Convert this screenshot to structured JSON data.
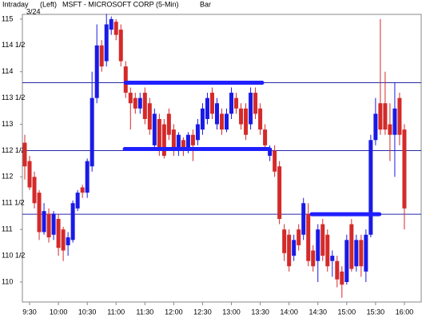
{
  "chart_data": {
    "type": "candlestick",
    "title": "MSFT - MICROSOFT CORP  (5-Min)",
    "mode": "Intraday",
    "side": "(Left)",
    "style": "Bar",
    "date": "3/24",
    "up_color": "#1a1ae6",
    "down_color": "#d42a2a",
    "line_color": "#2828a8",
    "band_color": "#1f1fff",
    "xlim": [
      562.5,
      977.5
    ],
    "ylim": [
      109.62,
      115.09
    ],
    "xticks": [
      {
        "value": 570,
        "label": "9:30"
      },
      {
        "value": 600,
        "label": "10:00"
      },
      {
        "value": 630,
        "label": "10:30"
      },
      {
        "value": 660,
        "label": "11:00"
      },
      {
        "value": 690,
        "label": "11:30"
      },
      {
        "value": 720,
        "label": "12:00"
      },
      {
        "value": 750,
        "label": "12:30"
      },
      {
        "value": 780,
        "label": "13:00"
      },
      {
        "value": 810,
        "label": "13:30"
      },
      {
        "value": 840,
        "label": "14:00"
      },
      {
        "value": 870,
        "label": "14:30"
      },
      {
        "value": 900,
        "label": "15:00"
      },
      {
        "value": 930,
        "label": "15:30"
      },
      {
        "value": 960,
        "label": "16:00"
      }
    ],
    "yticks": [
      110,
      {
        "value": 110.5,
        "label": "110 1/2"
      },
      111,
      {
        "value": 111.5,
        "label": "111 1/2"
      },
      112,
      {
        "value": 112.5,
        "label": "112 1/2"
      },
      113,
      {
        "value": 113.5,
        "label": "113 1/2"
      },
      114,
      {
        "value": 114.5,
        "label": "114 1/2"
      },
      115
    ],
    "x": [
      565,
      570,
      575,
      580,
      585,
      590,
      595,
      600,
      605,
      610,
      615,
      620,
      625,
      630,
      635,
      640,
      645,
      650,
      655,
      660,
      665,
      670,
      675,
      680,
      685,
      690,
      695,
      700,
      705,
      710,
      715,
      720,
      725,
      730,
      735,
      740,
      745,
      750,
      755,
      760,
      765,
      770,
      775,
      780,
      785,
      790,
      795,
      800,
      805,
      810,
      815,
      820,
      825,
      830,
      835,
      840,
      845,
      850,
      855,
      860,
      865,
      870,
      875,
      880,
      885,
      890,
      895,
      900,
      905,
      910,
      915,
      920,
      925,
      930,
      935,
      940,
      945,
      950,
      955,
      960
    ],
    "open": [
      112.65,
      112.3,
      112.0,
      111.7,
      110.95,
      111.3,
      110.9,
      111.2,
      111.0,
      110.7,
      110.8,
      111.4,
      111.8,
      111.7,
      112.2,
      113.5,
      114.5,
      114.2,
      114.8,
      114.95,
      114.8,
      114.1,
      113.6,
      113.5,
      113.3,
      113.6,
      113.4,
      112.6,
      113.1,
      113.0,
      113.2,
      112.9,
      112.5,
      112.7,
      112.5,
      112.8,
      112.7,
      112.9,
      113.1,
      113.6,
      113.0,
      113.2,
      112.9,
      113.2,
      113.5,
      113.3,
      113.3,
      113.0,
      113.6,
      113.3,
      112.9,
      112.4,
      112.5,
      112.2,
      111.0,
      110.9,
      110.5,
      111.0,
      110.9,
      111.3,
      110.6,
      110.4,
      111.1,
      110.9,
      110.4,
      110.4,
      110.2,
      110.0,
      111.1,
      110.3,
      110.8,
      110.2,
      110.9,
      112.7,
      113.4,
      113.4,
      113.0,
      112.8,
      113.5,
      112.9
    ],
    "high": [
      112.8,
      112.4,
      112.1,
      111.75,
      111.5,
      111.4,
      111.35,
      111.3,
      111.05,
      110.95,
      111.55,
      111.75,
      111.85,
      112.35,
      114.0,
      114.9,
      114.6,
      115.1,
      115.05,
      115.0,
      114.9,
      114.2,
      113.7,
      113.6,
      113.6,
      113.7,
      113.5,
      113.3,
      113.2,
      113.1,
      113.3,
      113.0,
      112.85,
      112.75,
      112.85,
      112.9,
      113.1,
      113.4,
      113.6,
      113.7,
      113.5,
      113.3,
      113.3,
      113.7,
      113.6,
      113.4,
      113.4,
      113.7,
      113.7,
      113.4,
      113.0,
      112.6,
      112.6,
      112.3,
      111.1,
      111.0,
      110.9,
      111.1,
      111.6,
      111.5,
      110.7,
      111.1,
      111.2,
      111.0,
      110.6,
      110.5,
      110.3,
      110.9,
      111.2,
      110.9,
      110.9,
      111.0,
      112.8,
      113.5,
      115.0,
      114.0,
      113.4,
      113.8,
      113.6,
      113.0
    ],
    "low": [
      111.95,
      111.75,
      111.4,
      110.8,
      110.9,
      110.75,
      110.8,
      110.5,
      110.4,
      110.5,
      110.75,
      111.35,
      111.6,
      111.6,
      112.1,
      113.4,
      114.0,
      114.1,
      114.7,
      114.6,
      114.1,
      113.5,
      112.9,
      113.2,
      113.2,
      113.0,
      112.8,
      112.55,
      112.4,
      112.35,
      112.7,
      112.4,
      112.4,
      112.4,
      112.45,
      112.3,
      112.6,
      112.8,
      113.0,
      113.1,
      112.9,
      112.8,
      112.85,
      113.1,
      113.2,
      112.9,
      112.7,
      112.9,
      113.1,
      112.8,
      112.5,
      112.3,
      112.0,
      111.1,
      110.4,
      110.2,
      110.4,
      110.6,
      110.8,
      110.3,
      110.2,
      110.0,
      110.4,
      110.2,
      110.1,
      109.9,
      109.7,
      109.95,
      110.2,
      110.2,
      110.1,
      110.0,
      110.85,
      112.6,
      112.8,
      112.8,
      112.3,
      112.0,
      112.6,
      111.0
    ],
    "close": [
      112.2,
      111.8,
      111.5,
      110.95,
      111.35,
      110.85,
      111.3,
      110.65,
      110.6,
      110.85,
      111.5,
      111.7,
      111.7,
      112.3,
      113.5,
      114.5,
      114.1,
      114.9,
      115.0,
      114.7,
      114.2,
      113.6,
      113.4,
      113.3,
      113.5,
      113.1,
      112.9,
      113.2,
      112.5,
      112.4,
      112.8,
      112.5,
      112.8,
      112.5,
      112.8,
      112.6,
      113.0,
      113.3,
      113.5,
      113.2,
      113.4,
      112.9,
      113.2,
      113.6,
      113.3,
      113.0,
      112.8,
      113.6,
      113.2,
      112.9,
      112.6,
      112.55,
      112.1,
      111.2,
      110.55,
      110.3,
      110.8,
      110.7,
      111.5,
      110.4,
      110.3,
      111.0,
      110.5,
      110.3,
      110.5,
      110.05,
      109.95,
      110.8,
      110.25,
      110.8,
      110.3,
      110.9,
      112.7,
      113.2,
      112.9,
      112.9,
      112.8,
      113.3,
      112.8,
      111.4
    ],
    "lines": [
      113.79,
      112.5,
      111.29
    ],
    "bands": [
      {
        "y": 113.79,
        "x": [
          670,
          812
        ]
      },
      {
        "y": 112.53,
        "x": [
          669,
          819
        ]
      },
      {
        "y": 111.29,
        "x": [
          863.5,
          934
        ]
      }
    ]
  }
}
